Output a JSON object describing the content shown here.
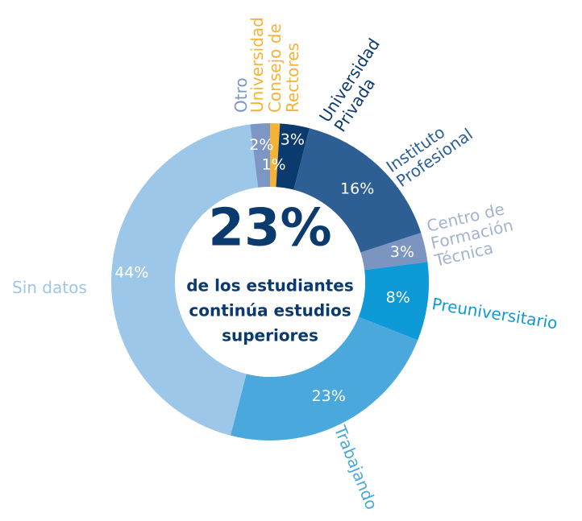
{
  "chart_data": {
    "type": "donut",
    "categories": [
      "Universidad Consejo de Rectores",
      "Universidad Privada",
      "Instituto Profesional",
      "Centro de Formación Técnica",
      "Preuniversitario",
      "Trabajando",
      "Sin datos",
      "Otro"
    ],
    "values": [
      1,
      3,
      16,
      3,
      8,
      23,
      44,
      2
    ],
    "value_labels": [
      "1%",
      "3%",
      "16%",
      "3%",
      "8%",
      "23%",
      "44%",
      "2%"
    ],
    "colors": [
      "#f5b335",
      "#0b3a6e",
      "#2d5f94",
      "#7b95c0",
      "#0d9ad6",
      "#4aa8dc",
      "#9cc7e8",
      "#7d97c4"
    ],
    "label_colors": [
      "#f5b335",
      "#0b3a6e",
      "#2d5f94",
      "#a3b3cf",
      "#0d9ad6",
      "#4aa8dc",
      "#9cc7e8",
      "#7d97c4"
    ],
    "center_title": "23%",
    "center_text": [
      "de los estudiantes",
      "continúa estudios",
      "superiores"
    ]
  }
}
